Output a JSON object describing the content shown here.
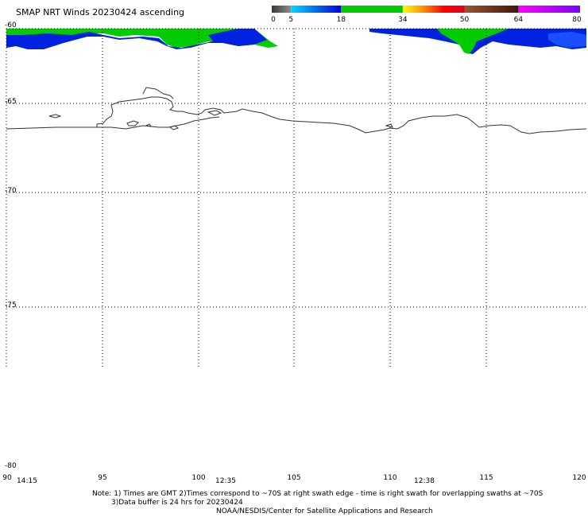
{
  "title": "SMAP NRT Winds 20230424 ascending",
  "colorbar": {
    "labels": [
      "0",
      "5",
      "18",
      "34",
      "50",
      "64",
      "80"
    ],
    "segments": [
      {
        "from": 0,
        "to": 5,
        "colors": [
          "#3a3a3a",
          "#8e8e8e"
        ]
      },
      {
        "from": 5,
        "to": 18,
        "colors": [
          "#00d8ff",
          "#0000e0"
        ]
      },
      {
        "from": 18,
        "to": 34,
        "colors": [
          "#00cc00",
          "#00cc00"
        ]
      },
      {
        "from": 34,
        "to": 50,
        "colors": [
          "#ffff00",
          "#ff8c00",
          "#ff0000",
          "#e00020"
        ]
      },
      {
        "from": 50,
        "to": 64,
        "colors": [
          "#a0522d",
          "#3a1a0a"
        ]
      },
      {
        "from": 64,
        "to": 80,
        "colors": [
          "#ff00ff",
          "#7a00ff"
        ]
      }
    ]
  },
  "map": {
    "lat_labels": [
      "-60",
      "-65",
      "-70",
      "-75",
      "-80"
    ],
    "lon_labels": [
      "90",
      "95",
      "100",
      "105",
      "110",
      "115",
      "120"
    ],
    "time_labels": [
      "14:15",
      "12:35",
      "12:38"
    ]
  },
  "note": {
    "line1": "Note: 1) Times are GMT 2)Times correspond to ~70S at right swath edge - time is right swath for overlapping swaths at ~70S",
    "line2": "3)Data buffer is 24 hrs for 20230424",
    "line3": "NOAA/NESDIS/Center for Satellite Applications and Research"
  },
  "colors": {
    "wind_low": "#0000e0",
    "wind_mid": "#00cc00",
    "coast": "#333333",
    "grid": "#000000"
  }
}
